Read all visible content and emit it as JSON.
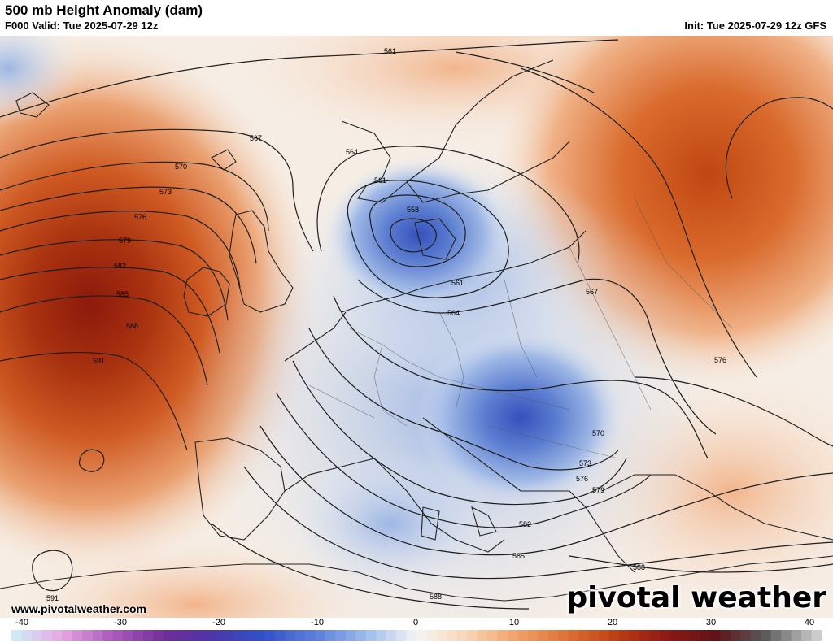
{
  "header": {
    "title": "500 mb Height Anomaly (dam)",
    "valid": "F000 Valid: Tue 2025-07-29 12z",
    "init": "Init: Tue 2025-07-29 12z GFS"
  },
  "footer": {
    "website": "www.pivotalweather.com",
    "logo": "pivotal weather"
  },
  "colorbar": {
    "ticks": [
      "-40",
      "-30",
      "-20",
      "-10",
      "0",
      "10",
      "20",
      "30",
      "40"
    ],
    "range": [
      -40,
      40
    ]
  },
  "contour_labels": {
    "c561_north": "561",
    "c567": "567",
    "c570": "570",
    "c573": "573",
    "c576": "576",
    "c579": "579",
    "c582": "582",
    "c585": "585",
    "c588": "588",
    "c591": "591",
    "c564_nw": "564",
    "c561_low": "561",
    "c558": "558",
    "c561_denmark": "561",
    "c564_low": "564",
    "c567_poland": "567",
    "c576_east": "576",
    "c570_balkan": "570",
    "c573_balkan": "573",
    "c576_balkan": "576",
    "c579_balkan": "579",
    "c582_south": "582",
    "c585_south": "585",
    "c588_east": "588",
    "c588_africa": "588",
    "c591_sw": "591"
  },
  "colors": {
    "strong_positive": "#b3300d",
    "positive": "#e5864a",
    "weak_positive": "#f6d2b6",
    "neutral": "#f7f4f1",
    "weak_negative": "#d3dff0",
    "negative": "#7d9dd9",
    "strong_negative": "#3c5dc4"
  }
}
